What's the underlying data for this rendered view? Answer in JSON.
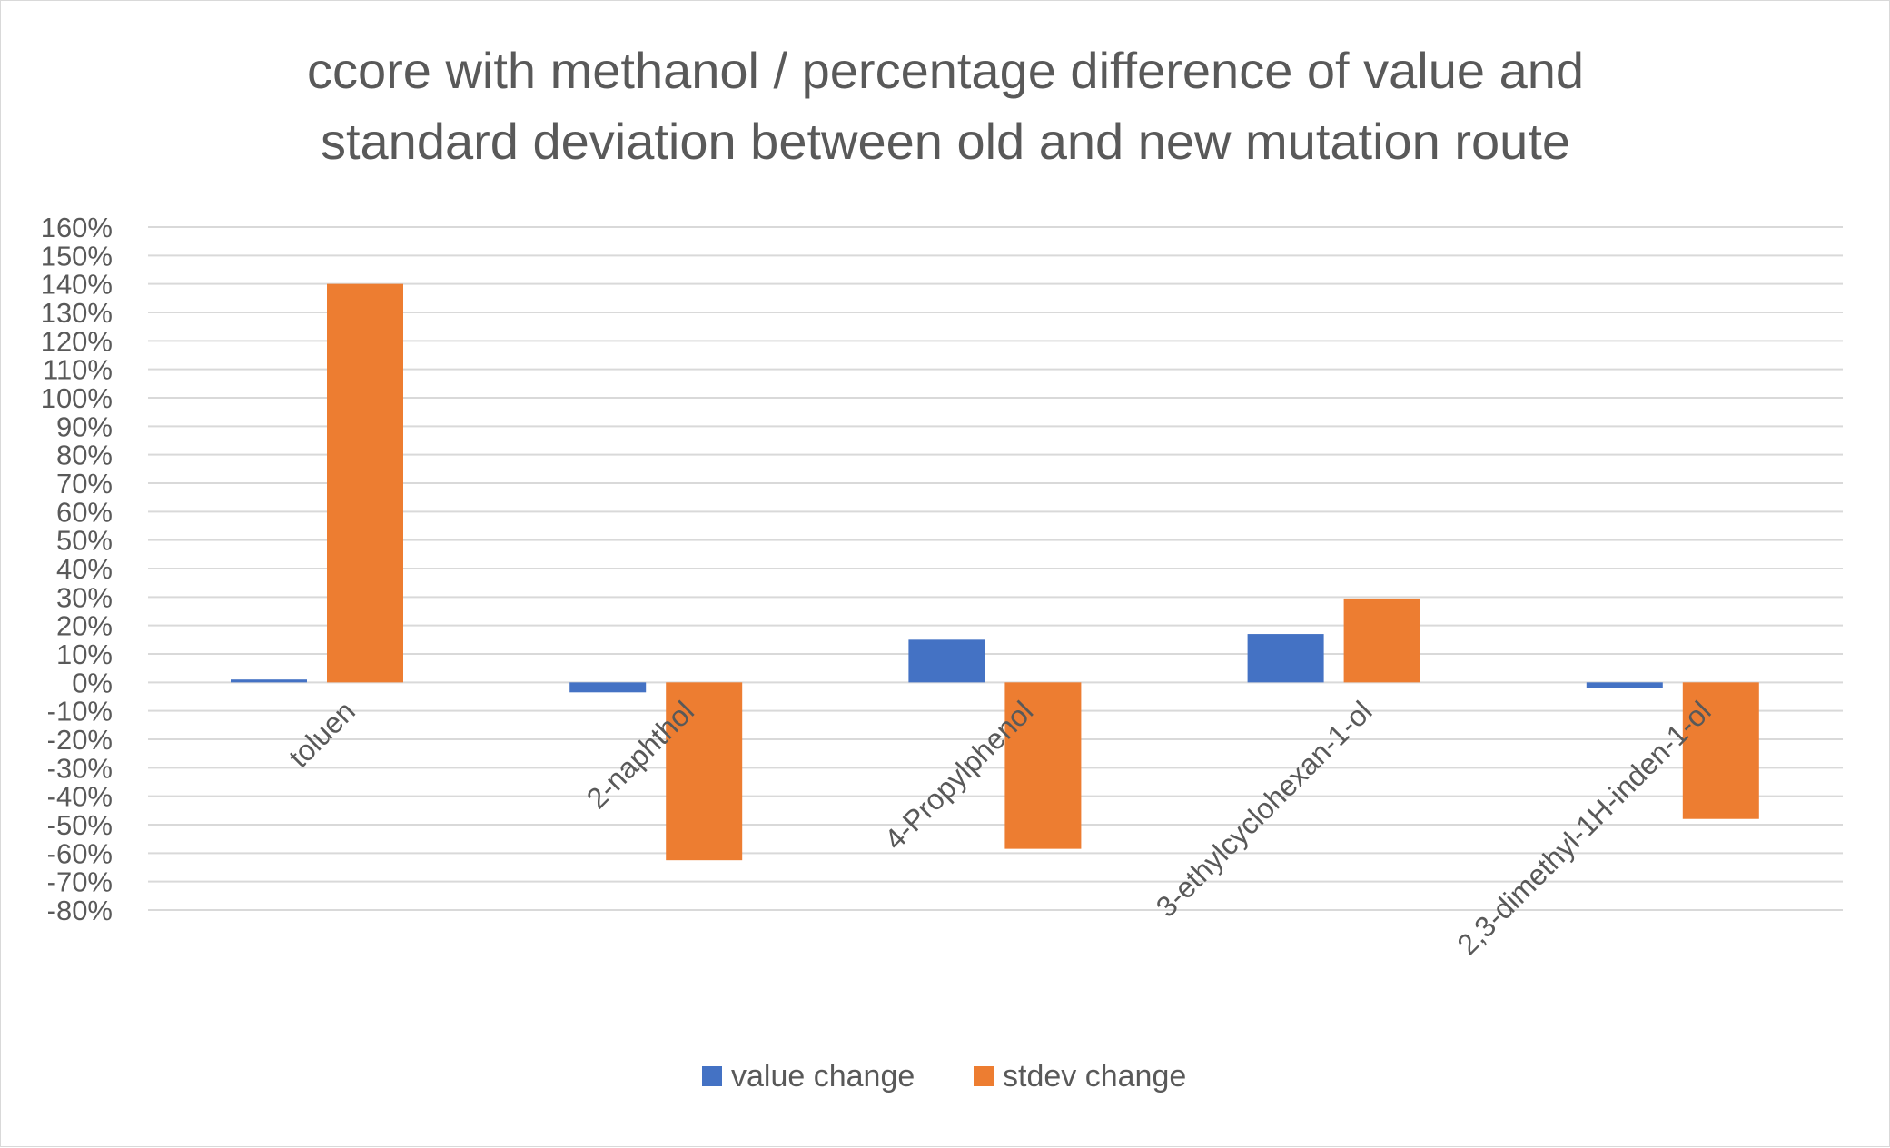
{
  "chart_data": {
    "type": "bar",
    "title_lines": [
      "ccore with methanol / percentage difference of value and",
      "standard deviation between old and new mutation route"
    ],
    "categories": [
      "toluen",
      "2-naphthol",
      "4-Propylphenol",
      "3-ethylcyclohexan-1-ol",
      "2,3-dimethyl-1H-inden-1-ol"
    ],
    "series": [
      {
        "name": "value change",
        "color": "#4472C4",
        "values": [
          0.01,
          -0.035,
          0.15,
          0.17,
          -0.02
        ]
      },
      {
        "name": "stdev change",
        "color": "#ED7D31",
        "values": [
          1.4,
          -0.625,
          -0.585,
          0.295,
          -0.48
        ]
      }
    ],
    "ylim": [
      -0.8,
      1.6
    ],
    "yticks": [
      "160%",
      "150%",
      "140%",
      "130%",
      "120%",
      "110%",
      "100%",
      "90%",
      "80%",
      "70%",
      "60%",
      "50%",
      "40%",
      "30%",
      "20%",
      "10%",
      "0%",
      "-10%",
      "-20%",
      "-30%",
      "-40%",
      "-50%",
      "-60%",
      "-70%",
      "-80%"
    ],
    "grid": true,
    "legend_position": "bottom",
    "xlabel": "",
    "ylabel": ""
  }
}
